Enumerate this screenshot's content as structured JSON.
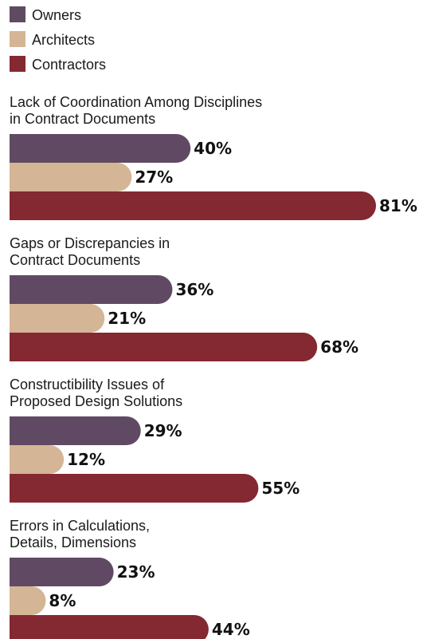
{
  "chart_data": {
    "type": "bar",
    "orientation": "horizontal",
    "unit": "%",
    "max_value": 81,
    "legend_placement": "top-left",
    "grid": false,
    "series": [
      {
        "name": "Owners",
        "color": "#604a63"
      },
      {
        "name": "Architects",
        "color": "#d4b595"
      },
      {
        "name": "Contractors",
        "color": "#842831"
      }
    ],
    "categories": [
      {
        "title_lines": [
          "Lack of Coordination Among Disciplines",
          "in Contract Documents"
        ],
        "values": [
          40,
          27,
          81
        ],
        "labels": [
          "40%",
          "27%",
          "81%"
        ]
      },
      {
        "title_lines": [
          "Gaps or Discrepancies in",
          "Contract Documents"
        ],
        "values": [
          36,
          21,
          68
        ],
        "labels": [
          "36%",
          "21%",
          "68%"
        ]
      },
      {
        "title_lines": [
          "Constructibility Issues of",
          "Proposed Design Solutions"
        ],
        "values": [
          29,
          12,
          55
        ],
        "labels": [
          "29%",
          "12%",
          "55%"
        ]
      },
      {
        "title_lines": [
          "Errors in Calculations,",
          "Details, Dimensions"
        ],
        "values": [
          23,
          8,
          44
        ],
        "labels": [
          "23%",
          "8%",
          "44%"
        ]
      }
    ]
  }
}
